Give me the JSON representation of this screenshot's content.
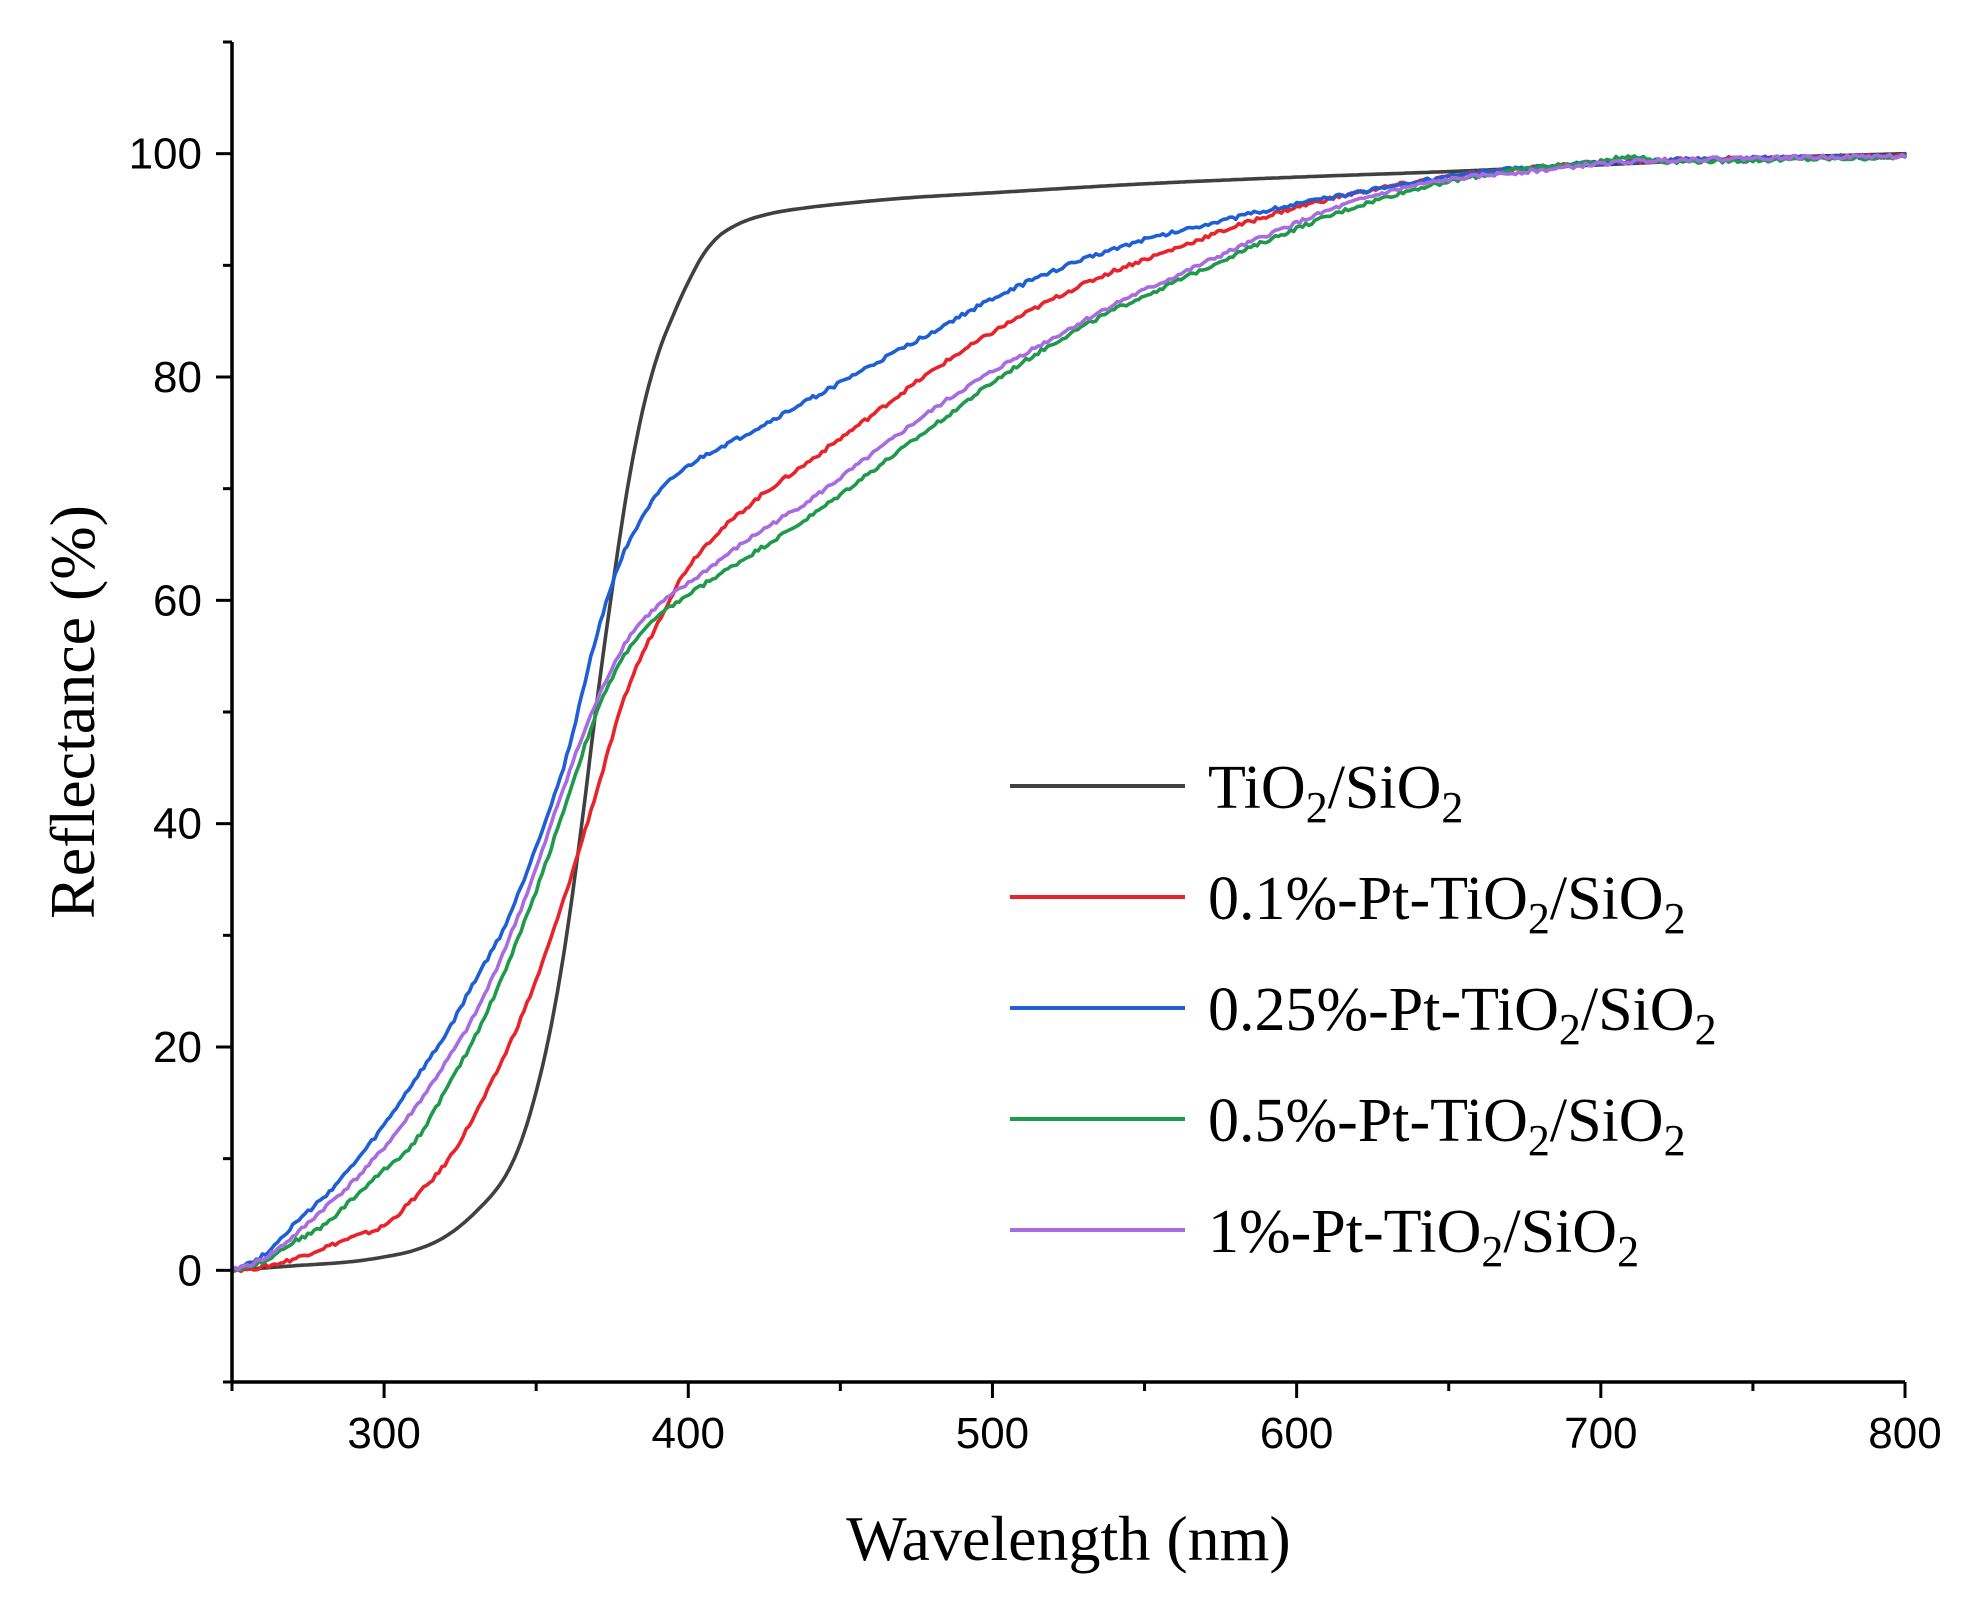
{
  "chart_data": {
    "type": "line",
    "title": "",
    "xlabel": "Wavelength (nm)",
    "ylabel": "Reflectance (%)",
    "xlim": [
      250,
      800
    ],
    "ylim": [
      -10,
      110
    ],
    "xticks": [
      300,
      400,
      500,
      600,
      700,
      800
    ],
    "yticks": [
      0,
      20,
      40,
      60,
      80,
      100
    ],
    "legend_position": "center-right",
    "series": [
      {
        "name": "TiO2/SiO2",
        "legend": {
          "pre": "TiO",
          "parts": [
            {
              "sub": "2"
            },
            {
              "text": "/SiO"
            },
            {
              "sub": "2"
            }
          ]
        },
        "color": "#404040",
        "x": [
          250,
          270,
          290,
          300,
          310,
          320,
          330,
          340,
          345,
          350,
          355,
          360,
          365,
          370,
          375,
          380,
          385,
          390,
          395,
          400,
          405,
          410,
          415,
          420,
          425,
          430,
          440,
          450,
          470,
          500,
          550,
          600,
          650,
          700,
          750,
          800
        ],
        "y": [
          0,
          0.4,
          0.8,
          1.2,
          1.8,
          3,
          5.2,
          8.5,
          11.5,
          16,
          22,
          30,
          40,
          51,
          61,
          70,
          77,
          82,
          85.5,
          88.5,
          91,
          92.6,
          93.5,
          94.1,
          94.5,
          94.8,
          95.2,
          95.5,
          96,
          96.5,
          97.3,
          97.9,
          98.4,
          99,
          99.6,
          100
        ]
      },
      {
        "name": "0.1%-Pt-TiO2/SiO2",
        "legend": {
          "pre": "0.1%-Pt-TiO",
          "parts": [
            {
              "sub": "2"
            },
            {
              "text": "/SiO"
            },
            {
              "sub": "2"
            }
          ]
        },
        "color": "#e8232a",
        "x": [
          250,
          260,
          270,
          280,
          290,
          300,
          310,
          320,
          330,
          340,
          350,
          360,
          370,
          380,
          390,
          400,
          420,
          440,
          460,
          480,
          500,
          520,
          540,
          560,
          580,
          600,
          620,
          640,
          660,
          680,
          700,
          720,
          750,
          800
        ],
        "y": [
          0,
          0.3,
          1,
          2,
          3,
          4,
          6.5,
          9.5,
          14,
          19.5,
          26,
          34,
          43,
          52,
          58,
          63,
          68.5,
          72.5,
          76.5,
          80.5,
          84,
          87,
          89.5,
          91.5,
          93.5,
          95.2,
          96.5,
          97.5,
          98.3,
          98.8,
          99.2,
          99.4,
          99.6,
          99.8
        ]
      },
      {
        "name": "0.25%-Pt-TiO2/SiO2",
        "legend": {
          "pre": "0.25%-Pt-TiO",
          "parts": [
            {
              "sub": "2"
            },
            {
              "text": "/SiO"
            },
            {
              "sub": "2"
            }
          ]
        },
        "color": "#1f5fd6",
        "x": [
          250,
          260,
          270,
          280,
          290,
          300,
          310,
          320,
          330,
          340,
          350,
          360,
          365,
          370,
          375,
          380,
          390,
          400,
          420,
          440,
          460,
          480,
          500,
          520,
          540,
          560,
          580,
          600,
          620,
          640,
          660,
          680,
          700,
          720,
          750,
          800
        ],
        "y": [
          0,
          1.3,
          4,
          6.5,
          9.5,
          13,
          17,
          21,
          26,
          31,
          38,
          46,
          51.5,
          57,
          61.5,
          65,
          69.5,
          72,
          75,
          78,
          81,
          84,
          87,
          89.5,
          91.5,
          93,
          94.3,
          95.5,
          96.5,
          97.5,
          98.3,
          98.8,
          99.2,
          99.4,
          99.6,
          99.8
        ]
      },
      {
        "name": "0.5%-Pt-TiO2/SiO2",
        "legend": {
          "pre": "0.5%-Pt-TiO",
          "parts": [
            {
              "sub": "2"
            },
            {
              "text": "/SiO"
            },
            {
              "sub": "2"
            }
          ]
        },
        "color": "#1f9a4a",
        "x": [
          250,
          260,
          270,
          280,
          290,
          300,
          310,
          320,
          330,
          340,
          350,
          360,
          370,
          380,
          390,
          400,
          420,
          440,
          460,
          480,
          500,
          520,
          540,
          560,
          580,
          600,
          620,
          640,
          660,
          680,
          700,
          710,
          720,
          750,
          800
        ],
        "y": [
          0,
          0.8,
          2.5,
          4,
          6.5,
          9,
          11.5,
          16,
          21,
          27,
          34,
          42,
          50,
          55.5,
          58.5,
          60.5,
          64,
          67.5,
          71.5,
          75.5,
          79.5,
          83,
          86,
          88.5,
          91,
          93.3,
          95.3,
          96.9,
          98,
          98.8,
          99.3,
          99.8,
          99.3,
          99.4,
          99.7
        ]
      },
      {
        "name": "1%-Pt-TiO2/SiO2",
        "legend": {
          "pre": "1%-Pt-TiO",
          "parts": [
            {
              "sub": "2"
            },
            {
              "text": "/SiO"
            },
            {
              "sub": "2"
            }
          ]
        },
        "color": "#a86be0",
        "x": [
          250,
          260,
          270,
          280,
          290,
          300,
          310,
          320,
          330,
          340,
          350,
          360,
          370,
          380,
          390,
          400,
          420,
          440,
          460,
          480,
          500,
          520,
          540,
          560,
          580,
          600,
          620,
          640,
          660,
          680,
          700,
          720,
          750,
          800
        ],
        "y": [
          0,
          1,
          3,
          5.5,
          8,
          11,
          14.5,
          18.5,
          23,
          29,
          36,
          44,
          51,
          56.5,
          59.5,
          61.5,
          65.5,
          69,
          73,
          77,
          80.5,
          83.5,
          86.5,
          89,
          91.5,
          93.8,
          95.8,
          97.2,
          98,
          98.5,
          99.1,
          99.4,
          99.6,
          99.8
        ]
      }
    ]
  }
}
